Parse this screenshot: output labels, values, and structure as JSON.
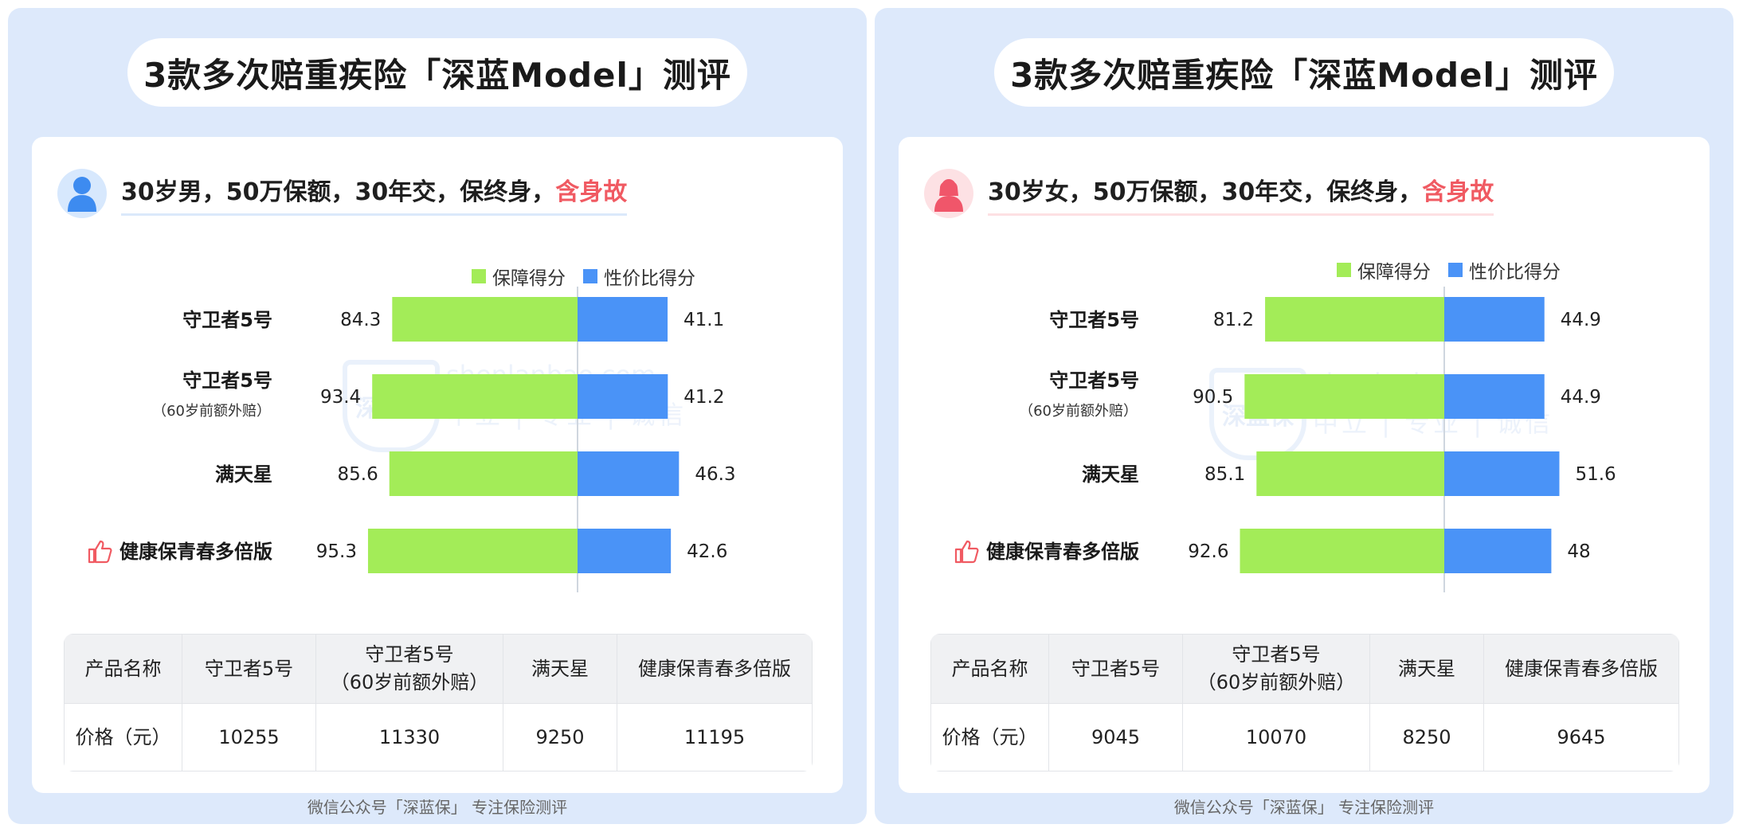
{
  "footer": "微信公众号「深蓝保」 专注保险测评",
  "watermark": {
    "brand": "深蓝保",
    "domain": "shenlanbao.com",
    "slogan": "中立 | 专业 | 诚信"
  },
  "colors": {
    "coverage": "#a3ec58",
    "value": "#4a93f7",
    "highlight": "#f05a62"
  },
  "panels": [
    {
      "title": "3款多次赔重疾险「深蓝Model」测评",
      "subtitle_main": "30岁男，50万保额，30年交，保终身，",
      "subtitle_highlight": "含身故",
      "avatar": "male-user-icon",
      "table": {
        "headers": [
          "产品名称",
          "守卫者5号",
          "守卫者5号",
          "满天星",
          "健康保青春多倍版"
        ],
        "header_sub": "（60岁前额外赔）",
        "row_label": "价格（元）",
        "prices": [
          "10255",
          "11330",
          "9250",
          "11195"
        ]
      },
      "chart_data": {
        "type": "bar",
        "orientation": "horizontal-diverging",
        "categories": [
          "守卫者5号",
          "守卫者5号",
          "满天星",
          "健康保青春多倍版"
        ],
        "category_notes": [
          "",
          "（60岁前额外赔）",
          "",
          ""
        ],
        "recommended": [
          false,
          false,
          false,
          true
        ],
        "legend_position": "top-right",
        "series": [
          {
            "name": "保障得分",
            "color": "#a3ec58",
            "values": [
              84.3,
              93.4,
              85.6,
              95.3
            ]
          },
          {
            "name": "性价比得分",
            "color": "#4a93f7",
            "values": [
              41.1,
              41.2,
              46.3,
              42.6
            ]
          }
        ]
      }
    },
    {
      "title": "3款多次赔重疾险「深蓝Model」测评",
      "subtitle_main": "30岁女，50万保额，30年交，保终身，",
      "subtitle_highlight": "含身故",
      "avatar": "female-user-icon",
      "table": {
        "headers": [
          "产品名称",
          "守卫者5号",
          "守卫者5号",
          "满天星",
          "健康保青春多倍版"
        ],
        "header_sub": "（60岁前额外赔）",
        "row_label": "价格（元）",
        "prices": [
          "9045",
          "10070",
          "8250",
          "9645"
        ]
      },
      "chart_data": {
        "type": "bar",
        "orientation": "horizontal-diverging",
        "categories": [
          "守卫者5号",
          "守卫者5号",
          "满天星",
          "健康保青春多倍版"
        ],
        "category_notes": [
          "",
          "（60岁前额外赔）",
          "",
          ""
        ],
        "recommended": [
          false,
          false,
          false,
          true
        ],
        "legend_position": "top-right",
        "series": [
          {
            "name": "保障得分",
            "color": "#a3ec58",
            "values": [
              81.2,
              90.5,
              85.1,
              92.6
            ]
          },
          {
            "name": "性价比得分",
            "color": "#4a93f7",
            "values": [
              44.9,
              44.9,
              51.6,
              48
            ]
          }
        ]
      }
    }
  ]
}
